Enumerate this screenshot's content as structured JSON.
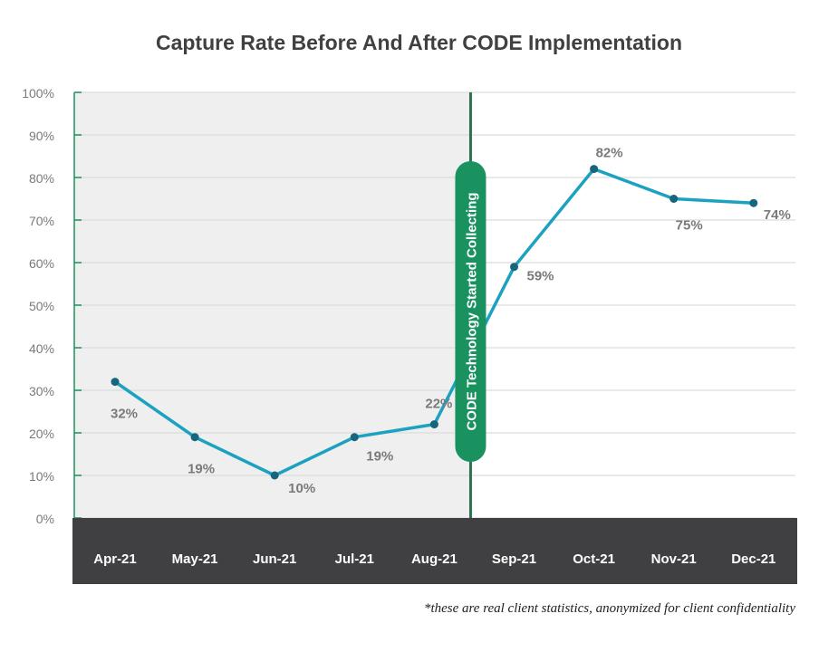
{
  "chart_data": {
    "type": "line",
    "title": "Capture Rate Before And After CODE Implementation",
    "categories": [
      "Apr-21",
      "May-21",
      "Jun-21",
      "Jul-21",
      "Aug-21",
      "Sep-21",
      "Oct-21",
      "Nov-21",
      "Dec-21"
    ],
    "series": [
      {
        "name": "Capture Rate",
        "values": [
          32,
          19,
          10,
          19,
          22,
          59,
          82,
          75,
          74
        ]
      }
    ],
    "data_labels": [
      "32%",
      "19%",
      "10%",
      "19%",
      "22%",
      "59%",
      "82%",
      "75%",
      "74%"
    ],
    "ylim": [
      0,
      100
    ],
    "yticks": [
      "0%",
      "10%",
      "20%",
      "30%",
      "40%",
      "50%",
      "60%",
      "70%",
      "80%",
      "90%",
      "100%"
    ],
    "grid": true,
    "annotation": "CODE Technology Started Collecting",
    "shaded_period": [
      "Apr-21",
      "Aug-21"
    ],
    "colors": {
      "line": "#1ba2c0",
      "marker": "#17667e",
      "annotation": "#1a9260",
      "axis_band": "#404042",
      "shade": "#efefef"
    }
  },
  "footnote": "*these are real client statistics, anonymized for client confidentiality"
}
